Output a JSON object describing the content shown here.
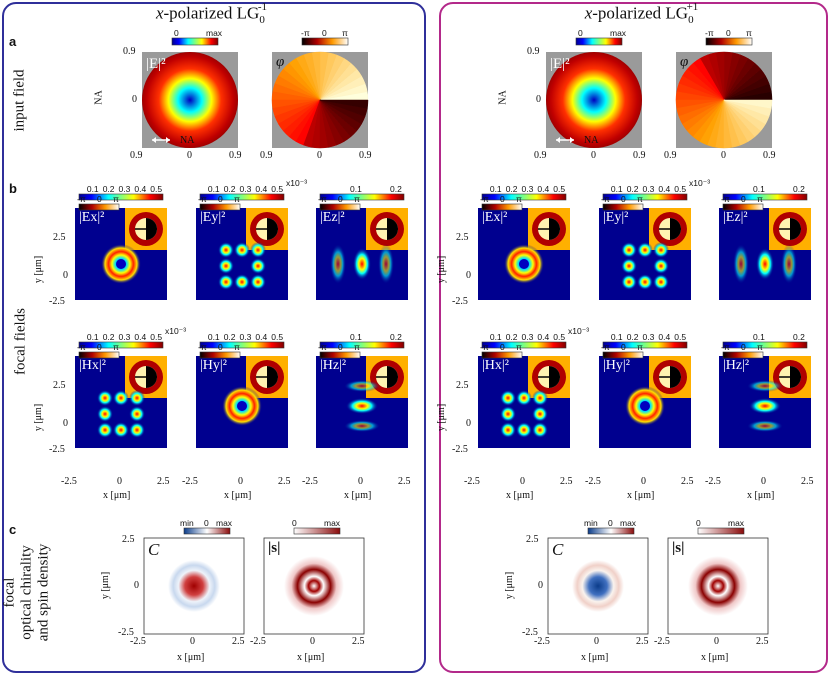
{
  "columns": [
    {
      "prefix": "x",
      "title": "-polarized LG",
      "sub": "0",
      "sup": "-1",
      "frame_color": "#2f2f9a"
    },
    {
      "prefix": "x",
      "title": "-polarized LG",
      "sub": "0",
      "sup": "+1",
      "frame_color": "#b3298a"
    }
  ],
  "rows": {
    "a": {
      "letter": "a",
      "label": "input field"
    },
    "b": {
      "letter": "b",
      "label": "focal fields"
    },
    "c": {
      "letter": "c",
      "label_lines": [
        "focal",
        "optical chirality",
        "and spin density"
      ]
    }
  },
  "input": {
    "intensity_symbol": "|E|²",
    "phase_symbol": "φ",
    "cbar_min": "0",
    "cbar_max": "max",
    "phase_min": "-π",
    "phase_mid": "0",
    "phase_max": "π",
    "na_label": "NA",
    "na_ticks": [
      "0.9",
      "0",
      "0.9"
    ]
  },
  "focal": {
    "E_labels": [
      "|Ex|²",
      "|Ey|²",
      "|Ez|²"
    ],
    "H_labels": [
      "|Hx|²",
      "|Hy|²",
      "|Hz|²"
    ],
    "cbar_ticks_05": [
      "0.1",
      "0.2",
      "0.3",
      "0.4",
      "0.5"
    ],
    "cbar_ticks_02": [
      "0.1",
      "0.2"
    ],
    "exp_label": "x10⁻³",
    "phase_ticks": [
      "-π",
      "0",
      "π"
    ],
    "phi": "φ",
    "y_axis": "y [μm]",
    "x_axis": "x [μm]",
    "y_ticks": [
      "2.5",
      "0",
      "-2.5"
    ],
    "x_ticks": [
      "-2.5",
      "0",
      "2.5"
    ]
  },
  "chirality": {
    "C_symbol": "C",
    "s_symbol": "|s|",
    "c_cbar": [
      "min",
      "0",
      "max"
    ],
    "s_cbar": [
      "0",
      "max"
    ],
    "y_axis": "y [μm]",
    "x_axis": "x [μm]",
    "y_ticks": [
      "2.5",
      "0",
      "-2.5"
    ],
    "x_ticks": [
      "-2.5",
      "0",
      "2.5"
    ]
  }
}
